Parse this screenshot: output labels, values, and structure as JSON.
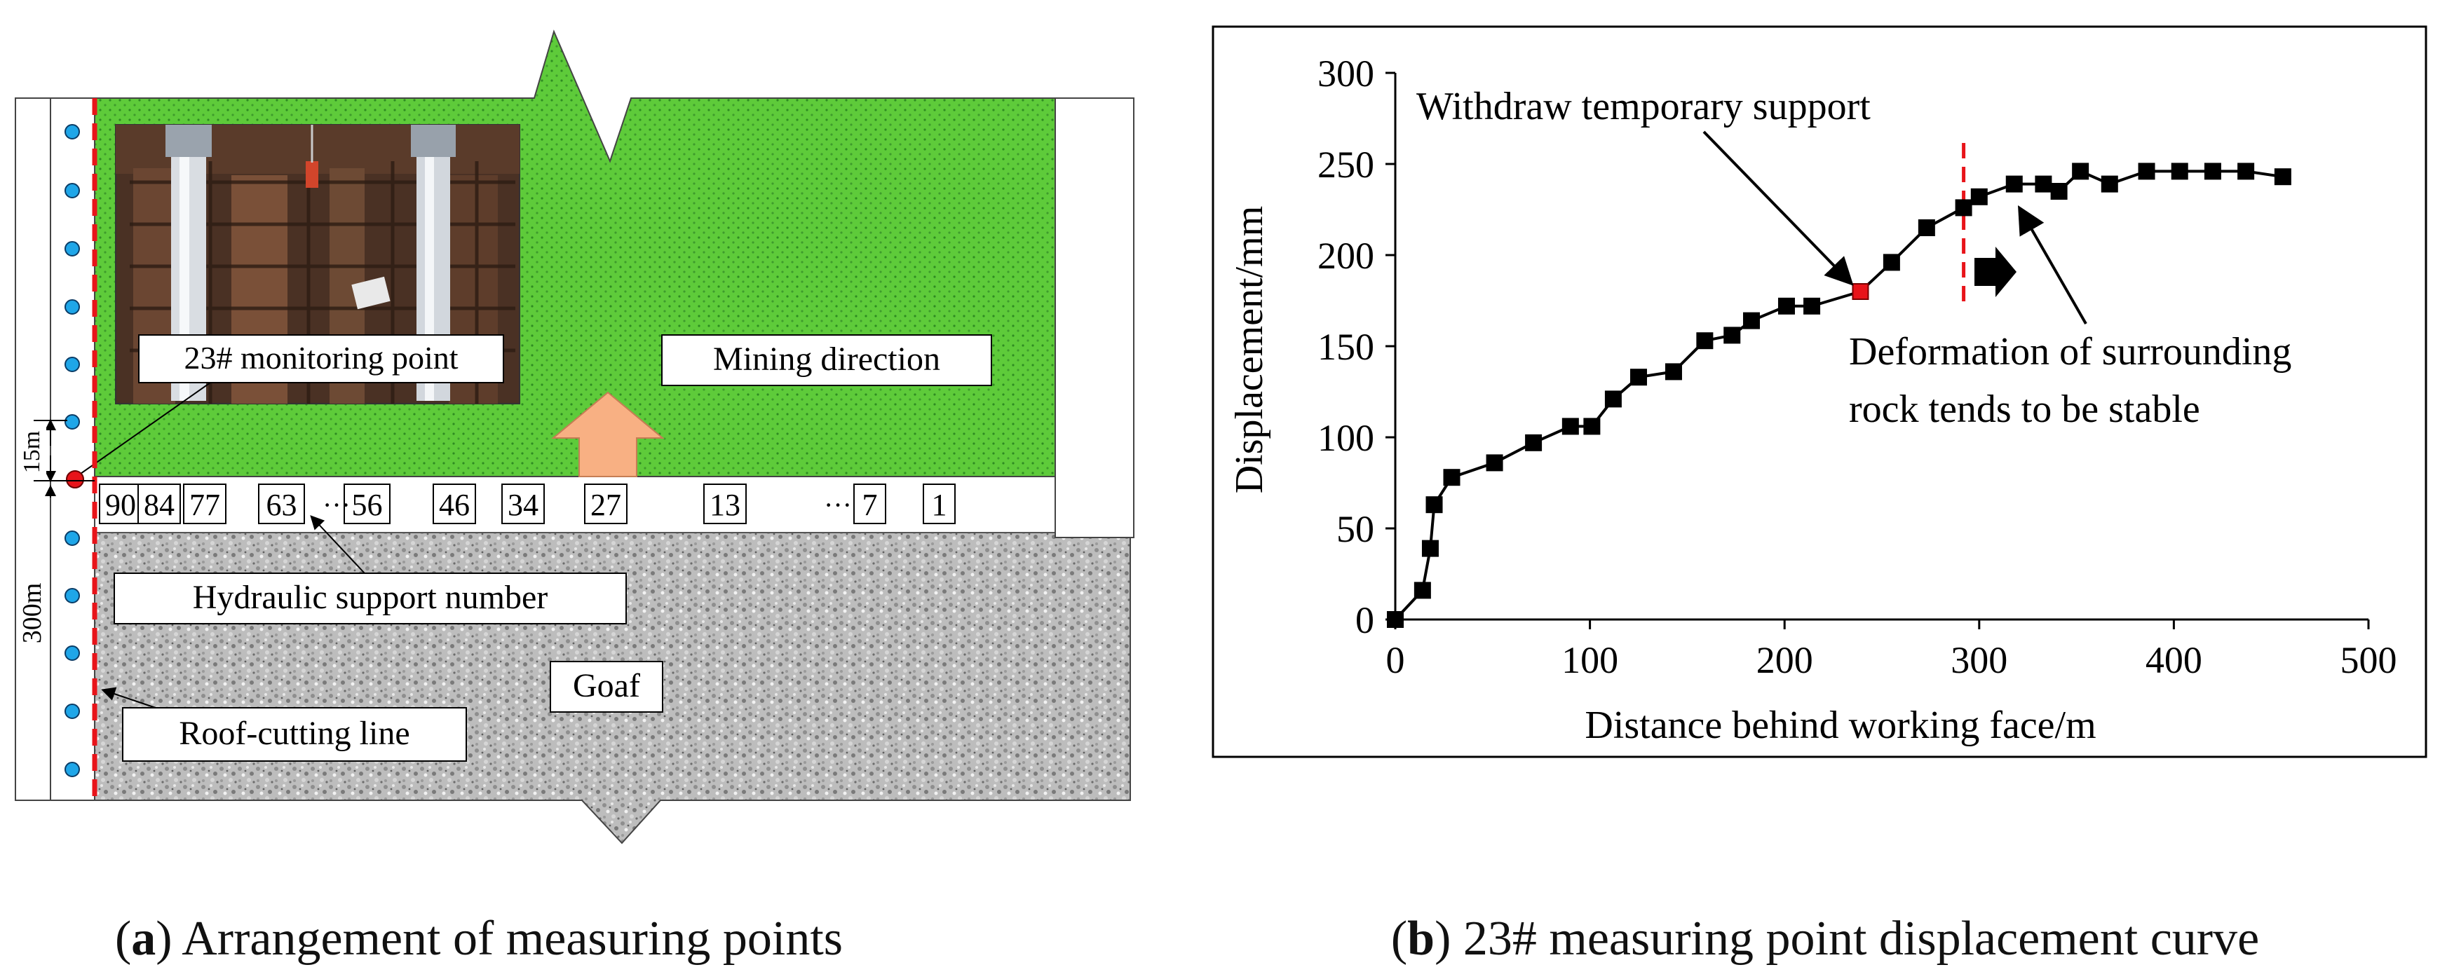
{
  "panel_a": {
    "caption_letter": "a",
    "caption_text": " Arrangement of measuring points",
    "labels": {
      "monitoring_point": "23# monitoring point",
      "mining_direction": "Mining direction",
      "hydraulic_support": "Hydraulic support number",
      "roof_cutting": "Roof-cutting line",
      "goaf": "Goaf",
      "dim_15": "15m",
      "dim_300": "300m"
    },
    "support_numbers": [
      "90",
      "84",
      "77",
      "63",
      "56",
      "46",
      "34",
      "27",
      "13",
      "7",
      "1"
    ],
    "ellipsis": "···",
    "colors": {
      "green": "#5ecb3a",
      "goaf": "#b9b9b9",
      "arrow": "#f8b083",
      "red_line": "#e8141a",
      "dot": "#1fa6e8"
    }
  },
  "panel_b": {
    "caption_letter": "b",
    "caption_text": " 23# measuring point displacement curve",
    "annotation_withdraw": "Withdraw temporary support",
    "annotation_stable_line1": "Deformation of surrounding",
    "annotation_stable_line2": "rock tends to be stable"
  },
  "chart_data": {
    "type": "line",
    "title": "",
    "xlabel": "Distance behind working face/m",
    "ylabel": "Displacement/mm",
    "xlim": [
      0,
      500
    ],
    "ylim": [
      0,
      300
    ],
    "xticks": [
      "0",
      "100",
      "200",
      "300",
      "400",
      "500"
    ],
    "yticks": [
      "0",
      "50",
      "100",
      "150",
      "200",
      "250",
      "300"
    ],
    "grid": false,
    "series": [
      {
        "name": "23# measuring point",
        "x": [
          0,
          14,
          18,
          20,
          29,
          51,
          71,
          90,
          101,
          112,
          125,
          143,
          159,
          173,
          183,
          201,
          214,
          239,
          255,
          273,
          292,
          300,
          318,
          333,
          341,
          352,
          367,
          386,
          403,
          420,
          437,
          456
        ],
        "y": [
          0,
          16,
          39,
          63,
          78,
          86,
          97,
          106,
          106,
          121,
          133,
          136,
          153,
          156,
          164,
          172,
          172,
          180,
          196,
          215,
          226,
          232,
          239,
          239,
          235,
          246,
          239,
          246,
          246,
          246,
          246,
          243
        ]
      }
    ],
    "highlight_point": {
      "x": 239,
      "y": 180,
      "color": "#e8141a"
    },
    "vertical_marker_x": 292
  }
}
